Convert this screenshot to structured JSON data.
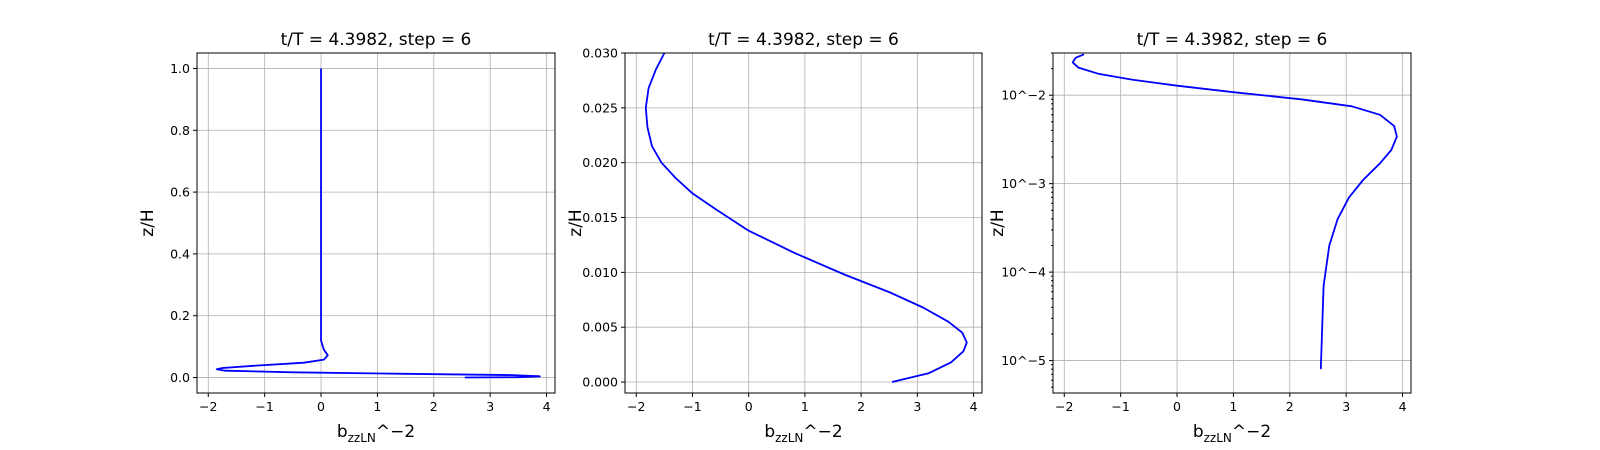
{
  "chart_data": [
    {
      "type": "line",
      "title": "t/T = 4.3982, step = 6",
      "xlabel": "b_zzLN^-2",
      "ylabel": "z/H",
      "xlim": [
        -2.2,
        4.15
      ],
      "ylim": [
        -0.05,
        1.05
      ],
      "yscale": "linear",
      "xticks": [
        -2,
        -1,
        0,
        1,
        2,
        3,
        4
      ],
      "yticks": [
        0.0,
        0.2,
        0.4,
        0.6,
        0.8,
        1.0
      ],
      "ytick_labels": [
        "0.0",
        "0.2",
        "0.4",
        "0.6",
        "0.8",
        "1.0"
      ],
      "grid": true,
      "color": "#0000ff",
      "x": [
        2.55,
        3.5,
        3.88,
        3.4,
        1.5,
        -0.5,
        -1.7,
        -1.85,
        -1.75,
        -1.2,
        -0.3,
        0.05,
        0.12,
        0.05,
        0.0,
        0.0,
        0.0
      ],
      "y": [
        0.0,
        0.001,
        0.004,
        0.008,
        0.012,
        0.017,
        0.022,
        0.027,
        0.031,
        0.038,
        0.048,
        0.058,
        0.072,
        0.09,
        0.12,
        0.5,
        1.0
      ]
    },
    {
      "type": "line",
      "title": "t/T = 4.3982, step = 6",
      "xlabel": "b_zzLN^-2",
      "ylabel": "z/H",
      "xlim": [
        -2.2,
        4.15
      ],
      "ylim": [
        -0.001,
        0.03
      ],
      "yscale": "linear",
      "xticks": [
        -2,
        -1,
        0,
        1,
        2,
        3,
        4
      ],
      "yticks": [
        0.0,
        0.005,
        0.01,
        0.015,
        0.02,
        0.025,
        0.03
      ],
      "ytick_labels": [
        "0.000",
        "0.005",
        "0.010",
        "0.015",
        "0.020",
        "0.025",
        "0.030"
      ],
      "grid": true,
      "color": "#0000ff",
      "x": [
        2.55,
        3.2,
        3.6,
        3.82,
        3.88,
        3.8,
        3.55,
        3.1,
        2.5,
        1.7,
        0.8,
        0.0,
        -0.6,
        -1.0,
        -1.3,
        -1.55,
        -1.72,
        -1.8,
        -1.83,
        -1.78,
        -1.65,
        -1.5
      ],
      "y": [
        0.0,
        0.0008,
        0.0018,
        0.0028,
        0.0036,
        0.0045,
        0.0055,
        0.0068,
        0.0082,
        0.0098,
        0.0118,
        0.0138,
        0.0158,
        0.0172,
        0.0186,
        0.02,
        0.0215,
        0.0232,
        0.025,
        0.0268,
        0.0285,
        0.03
      ]
    },
    {
      "type": "line",
      "title": "t/T = 4.3982, step = 6",
      "xlabel": "b_zzLN^-2",
      "ylabel": "z/H",
      "xlim": [
        -2.2,
        4.15
      ],
      "ylim": [
        4.3e-06,
        0.03
      ],
      "yscale": "log",
      "xticks": [
        -2,
        -1,
        0,
        1,
        2,
        3,
        4
      ],
      "yticks": [
        1e-05,
        0.0001,
        0.001,
        0.01
      ],
      "ytick_labels": [
        "10^-5",
        "10^-4",
        "10^-3",
        "10^-2"
      ],
      "grid": true,
      "color": "#0000ff",
      "x": [
        2.55,
        2.6,
        2.7,
        2.85,
        3.05,
        3.3,
        3.6,
        3.8,
        3.9,
        3.85,
        3.6,
        3.1,
        2.2,
        1.0,
        0.0,
        -0.8,
        -1.4,
        -1.75,
        -1.85,
        -1.8,
        -1.65
      ],
      "y": [
        8e-06,
        7e-05,
        0.0002,
        0.0004,
        0.0007,
        0.0011,
        0.0017,
        0.0024,
        0.0034,
        0.0045,
        0.006,
        0.0075,
        0.009,
        0.0108,
        0.0128,
        0.015,
        0.0175,
        0.0205,
        0.0235,
        0.0265,
        0.029
      ]
    }
  ]
}
